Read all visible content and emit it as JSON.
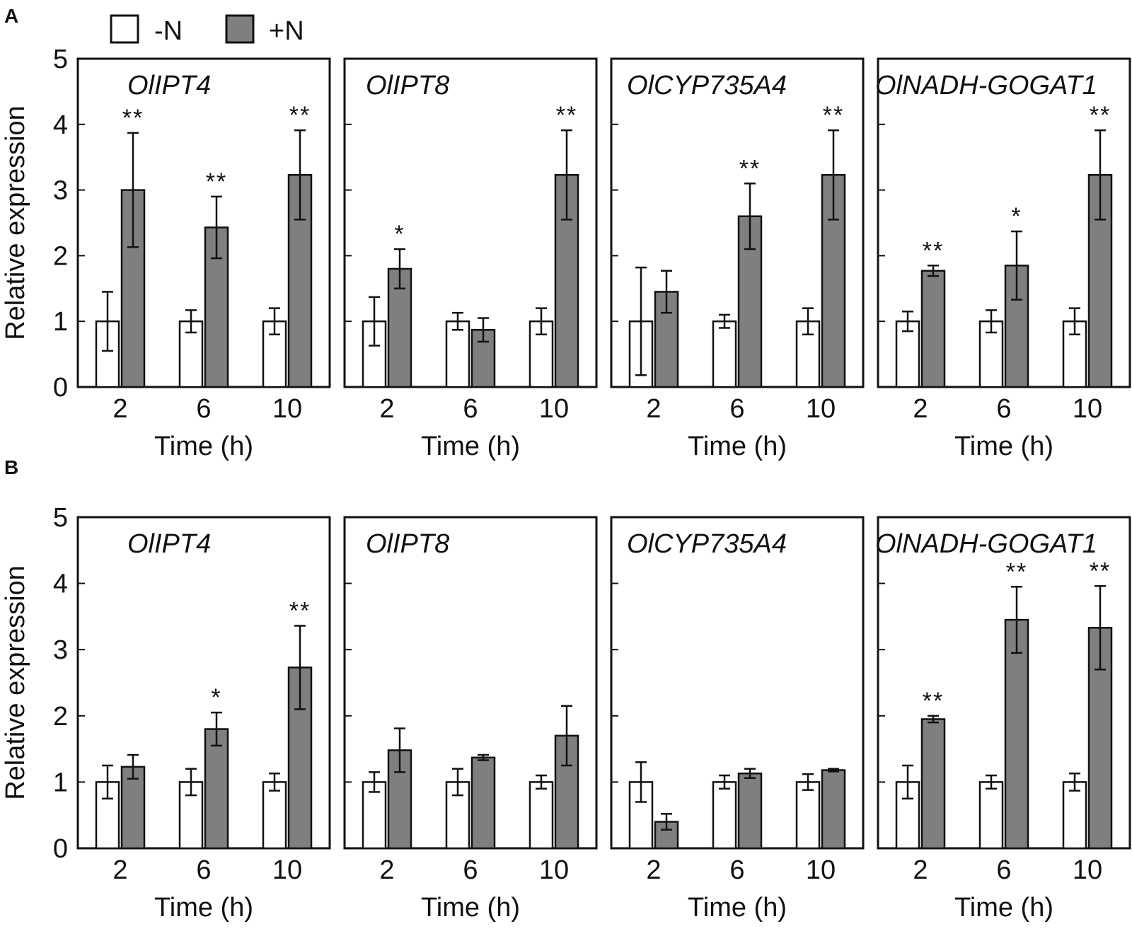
{
  "panel_labels": [
    "A",
    "B"
  ],
  "legend": {
    "minus": "-N",
    "plus": "+N",
    "minus_color": "#ffffff",
    "plus_color": "#7f7f7f"
  },
  "colors": {
    "axis": "#111111",
    "minus_fill": "#ffffff",
    "plus_fill": "#7f7f7f"
  },
  "chart_data": [
    {
      "row": "A",
      "type": "bar",
      "gene": "OlIPT4",
      "categories": [
        "2",
        "6",
        "10"
      ],
      "xlabel": "Time (h)",
      "ylabel": "Relative expression",
      "ylim": [
        0,
        5
      ],
      "yticks": [
        "0",
        "1",
        "2",
        "3",
        "4",
        "5"
      ],
      "series": [
        {
          "name": "-N",
          "values": [
            1,
            1,
            1
          ],
          "errors": [
            0.45,
            0.17,
            0.2
          ]
        },
        {
          "name": "+N",
          "values": [
            3.0,
            2.43,
            3.23
          ],
          "errors": [
            0.87,
            0.47,
            0.68
          ]
        }
      ],
      "significance": [
        "**",
        "**",
        "**"
      ]
    },
    {
      "row": "A",
      "type": "bar",
      "gene": "OlIPT8",
      "categories": [
        "2",
        "6",
        "10"
      ],
      "xlabel": "Time (h)",
      "ylabel": "Relative expression",
      "ylim": [
        0,
        5
      ],
      "series": [
        {
          "name": "-N",
          "values": [
            1,
            1,
            1
          ],
          "errors": [
            0.37,
            0.13,
            0.2
          ]
        },
        {
          "name": "+N",
          "values": [
            1.8,
            0.87,
            3.23
          ],
          "errors": [
            0.3,
            0.18,
            0.68
          ]
        }
      ],
      "significance": [
        "*",
        "",
        "**"
      ]
    },
    {
      "row": "A",
      "type": "bar",
      "gene": "OlCYP735A4",
      "categories": [
        "2",
        "6",
        "10"
      ],
      "xlabel": "Time (h)",
      "ylabel": "Relative expression",
      "ylim": [
        0,
        5
      ],
      "series": [
        {
          "name": "-N",
          "values": [
            1,
            1,
            1
          ],
          "errors": [
            0.82,
            0.1,
            0.2
          ]
        },
        {
          "name": "+N",
          "values": [
            1.45,
            2.6,
            3.23
          ],
          "errors": [
            0.32,
            0.5,
            0.68
          ]
        }
      ],
      "significance": [
        "",
        "**",
        "**"
      ]
    },
    {
      "row": "A",
      "type": "bar",
      "gene": "OlNADH-GOGAT1",
      "categories": [
        "2",
        "6",
        "10"
      ],
      "xlabel": "Time (h)",
      "ylabel": "Relative expression",
      "ylim": [
        0,
        5
      ],
      "series": [
        {
          "name": "-N",
          "values": [
            1,
            1,
            1
          ],
          "errors": [
            0.15,
            0.17,
            0.2
          ]
        },
        {
          "name": "+N",
          "values": [
            1.77,
            1.85,
            3.23
          ],
          "errors": [
            0.08,
            0.52,
            0.68
          ]
        }
      ],
      "significance": [
        "**",
        "*",
        "**"
      ]
    },
    {
      "row": "B",
      "type": "bar",
      "gene": "OlIPT4",
      "categories": [
        "2",
        "6",
        "10"
      ],
      "xlabel": "Time (h)",
      "ylabel": "Relative expression",
      "ylim": [
        0,
        5
      ],
      "series": [
        {
          "name": "-N",
          "values": [
            1,
            1,
            1
          ],
          "errors": [
            0.25,
            0.2,
            0.13
          ]
        },
        {
          "name": "+N",
          "values": [
            1.23,
            1.8,
            2.73
          ],
          "errors": [
            0.18,
            0.25,
            0.63
          ]
        }
      ],
      "significance": [
        "",
        "*",
        "**"
      ]
    },
    {
      "row": "B",
      "type": "bar",
      "gene": "OlIPT8",
      "categories": [
        "2",
        "6",
        "10"
      ],
      "xlabel": "Time (h)",
      "ylabel": "Relative expression",
      "ylim": [
        0,
        5
      ],
      "series": [
        {
          "name": "-N",
          "values": [
            1,
            1,
            1
          ],
          "errors": [
            0.15,
            0.2,
            0.1
          ]
        },
        {
          "name": "+N",
          "values": [
            1.48,
            1.37,
            1.7
          ],
          "errors": [
            0.33,
            0.04,
            0.45
          ]
        }
      ],
      "significance": [
        "",
        "",
        ""
      ]
    },
    {
      "row": "B",
      "type": "bar",
      "gene": "OlCYP735A4",
      "categories": [
        "2",
        "6",
        "10"
      ],
      "xlabel": "Time (h)",
      "ylabel": "Relative expression",
      "ylim": [
        0,
        5
      ],
      "series": [
        {
          "name": "-N",
          "values": [
            1,
            1,
            1
          ],
          "errors": [
            0.3,
            0.1,
            0.12
          ]
        },
        {
          "name": "+N",
          "values": [
            0.4,
            1.13,
            1.18
          ],
          "errors": [
            0.12,
            0.07,
            0.02
          ]
        }
      ],
      "significance": [
        "",
        "",
        ""
      ]
    },
    {
      "row": "B",
      "type": "bar",
      "gene": "OlNADH-GOGAT1",
      "categories": [
        "2",
        "6",
        "10"
      ],
      "xlabel": "Time (h)",
      "ylabel": "Relative expression",
      "ylim": [
        0,
        5
      ],
      "series": [
        {
          "name": "-N",
          "values": [
            1,
            1,
            1
          ],
          "errors": [
            0.25,
            0.1,
            0.13
          ]
        },
        {
          "name": "+N",
          "values": [
            1.95,
            3.45,
            3.33
          ],
          "errors": [
            0.05,
            0.5,
            0.63
          ]
        }
      ],
      "significance": [
        "**",
        "**",
        "**"
      ]
    }
  ]
}
